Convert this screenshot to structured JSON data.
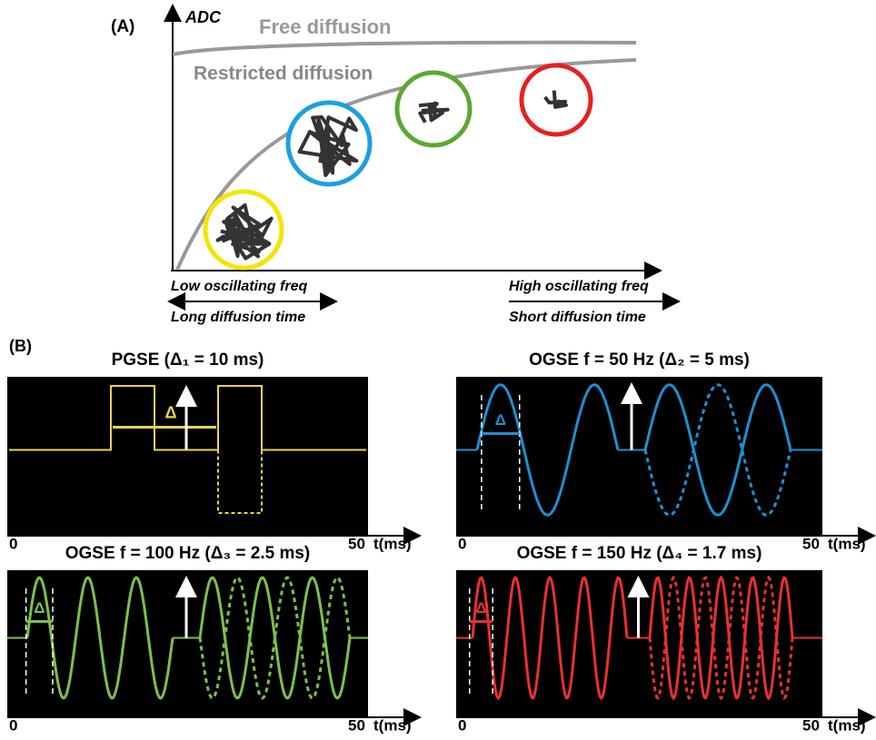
{
  "panel_a": {
    "label": "(A)",
    "y_axis_label": "ADC",
    "free_label": "Free diffusion",
    "restricted_label": "Restricted diffusion",
    "x_left_top": "Low oscillating freq",
    "x_left_bottom": "Long diffusion time",
    "x_right_top": "High oscillating freq",
    "x_right_bottom": "Short diffusion time"
  },
  "panel_b": {
    "label": "(B)",
    "plots": [
      {
        "title": "PGSE (Δ₁ = 10 ms)",
        "delta": "Δ",
        "x_start": "0",
        "x_end": "50",
        "x_unit": "t(ms)"
      },
      {
        "title": "OGSE f = 50 Hz (Δ₂ = 5 ms)",
        "delta": "Δ",
        "x_start": "0",
        "x_end": "50",
        "x_unit": "t(ms)"
      },
      {
        "title": "OGSE f = 100 Hz (Δ₃ = 2.5 ms)",
        "delta": "Δ",
        "x_start": "0",
        "x_end": "50",
        "x_unit": "t(ms)"
      },
      {
        "title": "OGSE f = 150 Hz (Δ₄ = 1.7 ms)",
        "delta": "Δ",
        "x_start": "0",
        "x_end": "50",
        "x_unit": "t(ms)"
      }
    ]
  }
}
